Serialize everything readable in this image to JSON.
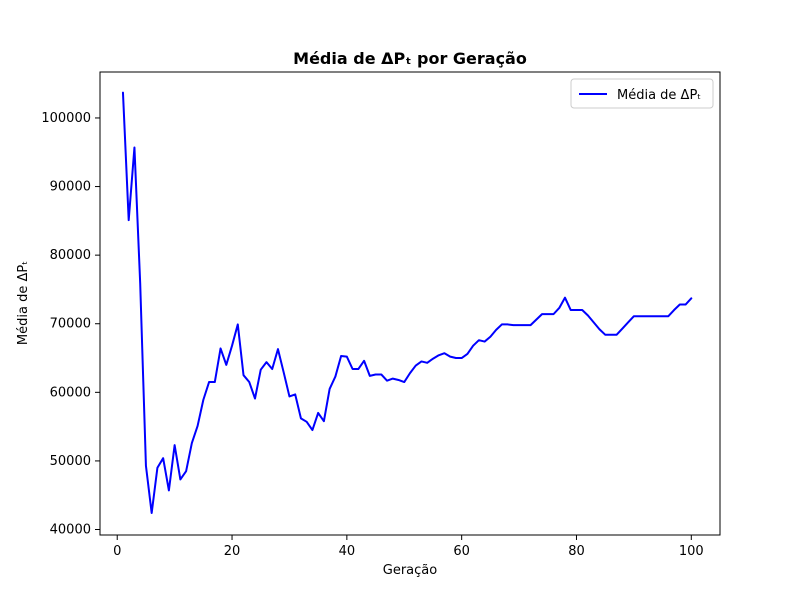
{
  "chart_data": {
    "type": "line",
    "title": "Média de ΔPₜ por Geração",
    "xlabel": "Geração",
    "ylabel": "Média de ΔPₜ",
    "xlim": [
      -3,
      105
    ],
    "ylim": [
      39200,
      106700
    ],
    "x_ticks": [
      0,
      20,
      40,
      60,
      80,
      100
    ],
    "x_tick_labels": [
      "0",
      "20",
      "40",
      "60",
      "80",
      "100"
    ],
    "y_ticks": [
      40000,
      50000,
      60000,
      70000,
      80000,
      90000,
      100000
    ],
    "y_tick_labels": [
      "40000",
      "50000",
      "60000",
      "70000",
      "80000",
      "90000",
      "100000"
    ],
    "grid": false,
    "legend_position": "top-right",
    "series": [
      {
        "name": "Média de ΔPₜ",
        "color": "#0000ff",
        "x": [
          1,
          2,
          3,
          4,
          5,
          6,
          7,
          8,
          9,
          10,
          11,
          12,
          13,
          14,
          15,
          16,
          17,
          18,
          19,
          20,
          21,
          22,
          23,
          24,
          25,
          26,
          27,
          28,
          29,
          30,
          31,
          32,
          33,
          34,
          35,
          36,
          37,
          38,
          39,
          40,
          41,
          42,
          43,
          44,
          45,
          46,
          47,
          48,
          49,
          50,
          51,
          52,
          53,
          54,
          55,
          56,
          57,
          58,
          59,
          60,
          61,
          62,
          63,
          64,
          65,
          66,
          67,
          68,
          69,
          70,
          71,
          72,
          73,
          74,
          75,
          76,
          77,
          78,
          79,
          80,
          81,
          82,
          83,
          84,
          85,
          86,
          87,
          88,
          89,
          90,
          91,
          92,
          93,
          94,
          95,
          96,
          97,
          98,
          99,
          100
        ],
        "y": [
          103700,
          85100,
          95700,
          75900,
          49300,
          42400,
          49000,
          50400,
          45700,
          52300,
          47300,
          48500,
          52600,
          55100,
          58900,
          61500,
          61500,
          66400,
          64000,
          66800,
          69900,
          62500,
          61500,
          59100,
          63300,
          64400,
          63400,
          66300,
          62900,
          59400,
          59700,
          56200,
          55700,
          54500,
          57000,
          55800,
          60500,
          62300,
          65300,
          65200,
          63400,
          63400,
          64600,
          62400,
          62600,
          62600,
          61700,
          62000,
          61800,
          61500,
          62800,
          63900,
          64500,
          64300,
          64900,
          65400,
          65700,
          65200,
          65000,
          65000,
          65600,
          66800,
          67600,
          67400,
          68100,
          69100,
          69900,
          69900,
          69800,
          69800,
          69800,
          69800,
          70600,
          71400,
          71400,
          71400,
          72300,
          73800,
          72000,
          72000,
          72000,
          71200,
          70200,
          69200,
          68400,
          68400,
          68400,
          69300,
          70200,
          71100,
          71100,
          71100,
          71100,
          71100,
          71100,
          71100,
          72000,
          72800,
          72800,
          73700
        ]
      }
    ]
  }
}
